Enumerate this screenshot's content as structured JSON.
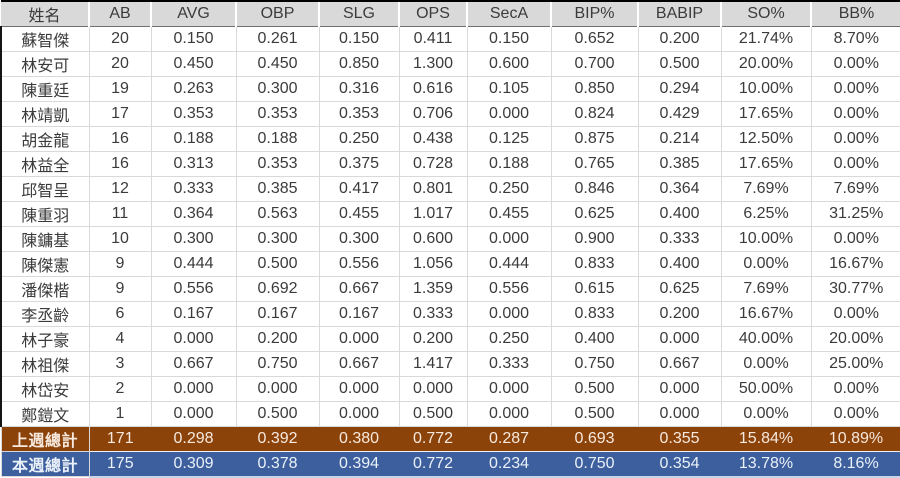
{
  "table": {
    "headers": [
      "姓名",
      "AB",
      "AVG",
      "OBP",
      "SLG",
      "OPS",
      "SecA",
      "BIP%",
      "BABIP",
      "SO%",
      "BB%"
    ],
    "rows": [
      [
        "蘇智傑",
        "20",
        "0.150",
        "0.261",
        "0.150",
        "0.411",
        "0.150",
        "0.652",
        "0.200",
        "21.74%",
        "8.70%"
      ],
      [
        "林安可",
        "20",
        "0.450",
        "0.450",
        "0.850",
        "1.300",
        "0.600",
        "0.700",
        "0.500",
        "20.00%",
        "0.00%"
      ],
      [
        "陳重廷",
        "19",
        "0.263",
        "0.300",
        "0.316",
        "0.616",
        "0.105",
        "0.850",
        "0.294",
        "10.00%",
        "0.00%"
      ],
      [
        "林靖凱",
        "17",
        "0.353",
        "0.353",
        "0.353",
        "0.706",
        "0.000",
        "0.824",
        "0.429",
        "17.65%",
        "0.00%"
      ],
      [
        "胡金龍",
        "16",
        "0.188",
        "0.188",
        "0.250",
        "0.438",
        "0.125",
        "0.875",
        "0.214",
        "12.50%",
        "0.00%"
      ],
      [
        "林益全",
        "16",
        "0.313",
        "0.353",
        "0.375",
        "0.728",
        "0.188",
        "0.765",
        "0.385",
        "17.65%",
        "0.00%"
      ],
      [
        "邱智呈",
        "12",
        "0.333",
        "0.385",
        "0.417",
        "0.801",
        "0.250",
        "0.846",
        "0.364",
        "7.69%",
        "7.69%"
      ],
      [
        "陳重羽",
        "11",
        "0.364",
        "0.563",
        "0.455",
        "1.017",
        "0.455",
        "0.625",
        "0.400",
        "6.25%",
        "31.25%"
      ],
      [
        "陳鏞基",
        "10",
        "0.300",
        "0.300",
        "0.300",
        "0.600",
        "0.000",
        "0.900",
        "0.333",
        "10.00%",
        "0.00%"
      ],
      [
        "陳傑憲",
        "9",
        "0.444",
        "0.500",
        "0.556",
        "1.056",
        "0.444",
        "0.833",
        "0.400",
        "0.00%",
        "16.67%"
      ],
      [
        "潘傑楷",
        "9",
        "0.556",
        "0.692",
        "0.667",
        "1.359",
        "0.556",
        "0.615",
        "0.625",
        "7.69%",
        "30.77%"
      ],
      [
        "李丞齡",
        "6",
        "0.167",
        "0.167",
        "0.167",
        "0.333",
        "0.000",
        "0.833",
        "0.200",
        "16.67%",
        "0.00%"
      ],
      [
        "林子豪",
        "4",
        "0.000",
        "0.200",
        "0.000",
        "0.200",
        "0.250",
        "0.400",
        "0.000",
        "40.00%",
        "20.00%"
      ],
      [
        "林祖傑",
        "3",
        "0.667",
        "0.750",
        "0.667",
        "1.417",
        "0.333",
        "0.750",
        "0.667",
        "0.00%",
        "25.00%"
      ],
      [
        "林岱安",
        "2",
        "0.000",
        "0.000",
        "0.000",
        "0.000",
        "0.000",
        "0.500",
        "0.000",
        "50.00%",
        "0.00%"
      ],
      [
        "鄭鎧文",
        "1",
        "0.000",
        "0.500",
        "0.000",
        "0.500",
        "0.000",
        "0.500",
        "0.000",
        "0.00%",
        "0.00%"
      ]
    ],
    "totals": [
      {
        "label": "上週總計",
        "values": [
          "171",
          "0.298",
          "0.392",
          "0.380",
          "0.772",
          "0.287",
          "0.693",
          "0.355",
          "15.84%",
          "10.89%"
        ]
      },
      {
        "label": "本週總計",
        "values": [
          "175",
          "0.309",
          "0.378",
          "0.394",
          "0.772",
          "0.234",
          "0.750",
          "0.354",
          "13.78%",
          "8.16%"
        ]
      }
    ]
  },
  "colors": {
    "header_bg": "#d9d9d9",
    "grid": "#d9d9d9",
    "text": "#3b3b3b",
    "last_week_bg": "#8c4309",
    "last_week_text": "#f7e9de",
    "this_week_bg": "#3e5f9e",
    "this_week_text": "#eaf1f9"
  }
}
